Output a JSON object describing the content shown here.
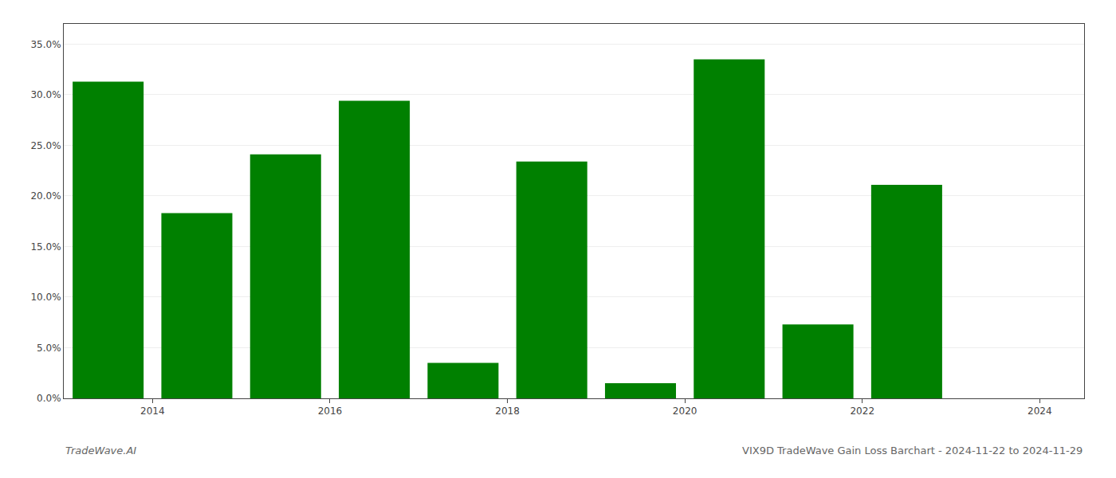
{
  "chart_data": {
    "type": "bar",
    "x": [
      2014,
      2015,
      2016,
      2017,
      2018,
      2019,
      2020,
      2021,
      2022,
      2023,
      2024
    ],
    "values": [
      0.313,
      0.183,
      0.241,
      0.294,
      0.035,
      0.234,
      0.015,
      0.335,
      0.073,
      0.211,
      0.0
    ],
    "color": "#008000",
    "xlim": [
      2013.5,
      2025.0
    ],
    "xticks": [
      {
        "value": 2014.5,
        "label": "2014"
      },
      {
        "value": 2016.5,
        "label": "2016"
      },
      {
        "value": 2018.5,
        "label": "2018"
      },
      {
        "value": 2020.5,
        "label": "2020"
      },
      {
        "value": 2022.5,
        "label": "2022"
      },
      {
        "value": 2024.5,
        "label": "2024"
      }
    ],
    "ylim": [
      0,
      0.37
    ],
    "yticks": [
      {
        "value": 0.0,
        "label": "0.0%"
      },
      {
        "value": 0.05,
        "label": "5.0%"
      },
      {
        "value": 0.1,
        "label": "10.0%"
      },
      {
        "value": 0.15,
        "label": "15.0%"
      },
      {
        "value": 0.2,
        "label": "20.0%"
      },
      {
        "value": 0.25,
        "label": "25.0%"
      },
      {
        "value": 0.3,
        "label": "30.0%"
      },
      {
        "value": 0.35,
        "label": "35.0%"
      }
    ],
    "grid": true,
    "annotations": [
      "TradeWave.AI",
      "VIX9D TradeWave Gain Loss Barchart - 2024-11-22 to 2024-11-29"
    ]
  }
}
